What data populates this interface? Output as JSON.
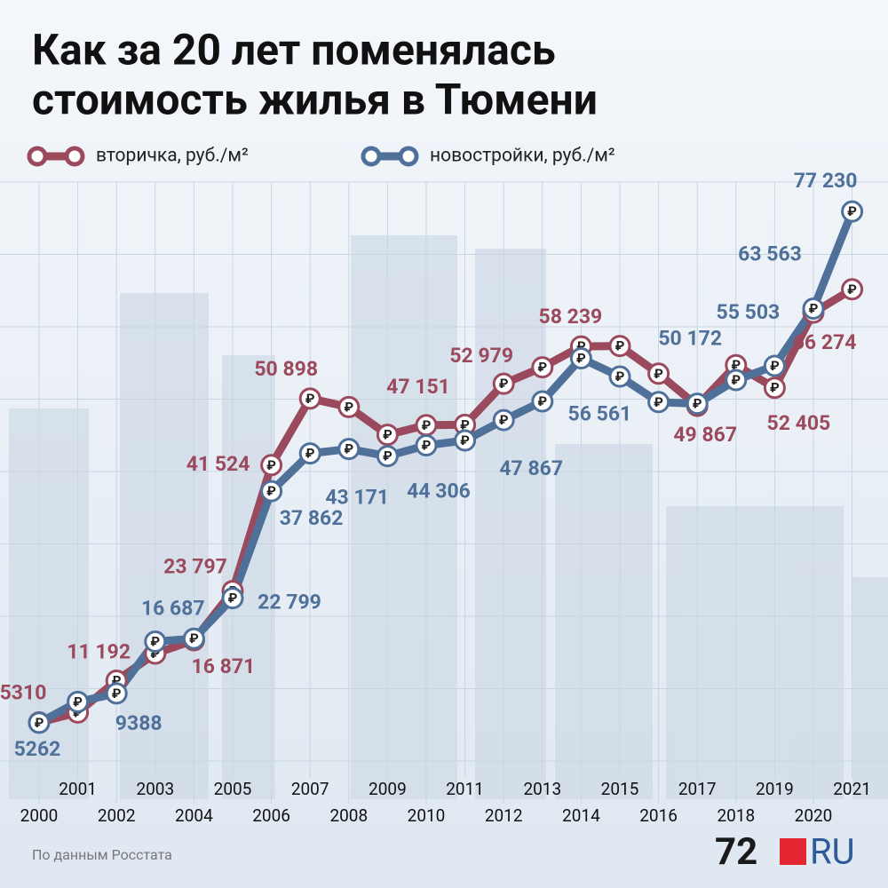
{
  "chart_data": {
    "type": "line",
    "title": [
      "Как за 20 лет поменялась",
      "стоимость жилья в Тюмени"
    ],
    "categories": [
      "2000",
      "2001",
      "2002",
      "2003",
      "2004",
      "2005",
      "2006",
      "2007",
      "2008",
      "2009",
      "2010",
      "2011",
      "2012",
      "2013",
      "2014",
      "2015",
      "2016",
      "2017",
      "2018",
      "2019",
      "2020",
      "2021"
    ],
    "ylim": [
      0,
      80000
    ],
    "marker_symbol": "₽",
    "series": [
      {
        "name": "вторичка, руб./м²",
        "color": "#9b4a5e",
        "values": [
          5310,
          6700,
          11192,
          15000,
          16871,
          23797,
          41524,
          50898,
          49700,
          45800,
          47151,
          47200,
          52979,
          55300,
          58239,
          58300,
          54400,
          49867,
          55600,
          52405,
          63000,
          66274
        ],
        "value_labels": [
          "5310",
          null,
          "11 192",
          null,
          "16 871",
          "23 797",
          "41 524",
          "50 898",
          null,
          null,
          "47 151",
          null,
          "52 979",
          null,
          "58 239",
          null,
          null,
          "49 867",
          null,
          "52 405",
          null,
          "66 274"
        ]
      },
      {
        "name": "новостройки, руб./м²",
        "color": "#4f7199",
        "values": [
          5262,
          8200,
          9388,
          16687,
          17100,
          22799,
          37862,
          43171,
          43800,
          42800,
          44306,
          45000,
          47867,
          50500,
          56561,
          54000,
          50400,
          50172,
          53500,
          55503,
          63563,
          77230
        ],
        "value_labels": [
          "5262",
          null,
          "9388",
          "16 687",
          null,
          "22 799",
          "37 862",
          "43 171",
          null,
          null,
          "44 306",
          null,
          "47 867",
          null,
          "56 561",
          null,
          null,
          "50 172",
          null,
          "55 503",
          "63 563",
          "77 230"
        ]
      }
    ],
    "source": "По данным Росстата",
    "logo": [
      "72",
      "RU"
    ]
  }
}
